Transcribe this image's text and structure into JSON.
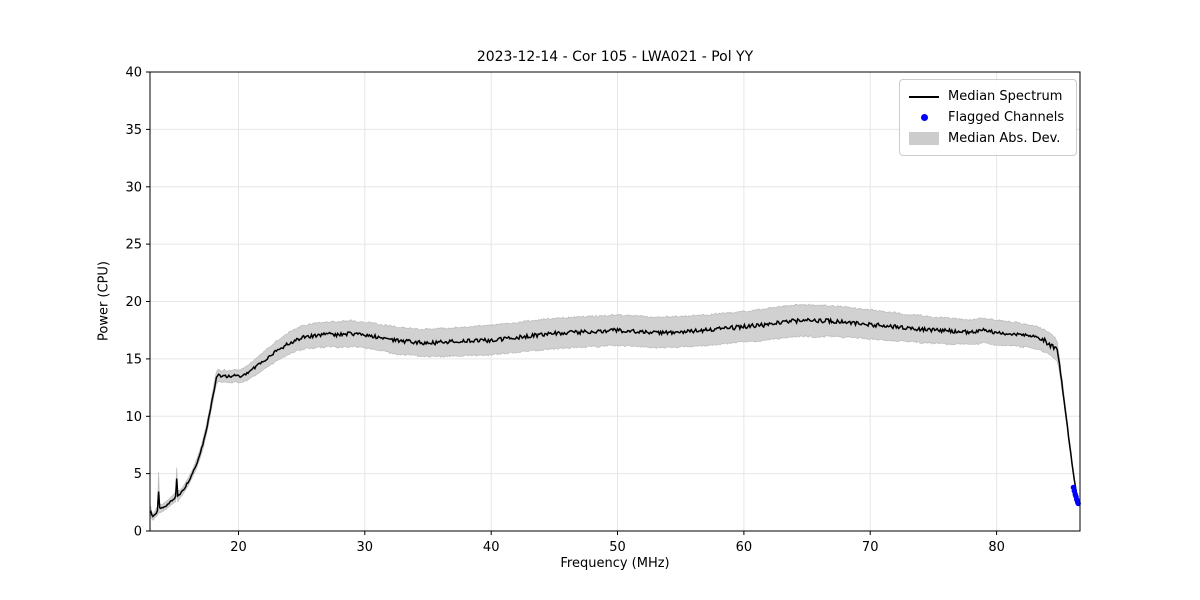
{
  "chart_data": {
    "type": "line",
    "title": "2023-12-14 - Cor 105 - LWA021 - Pol YY",
    "xlabel": "Frequency (MHz)",
    "ylabel": "Power (CPU)",
    "xlim": [
      13.0,
      86.6
    ],
    "ylim": [
      0,
      40
    ],
    "xticks": [
      20,
      30,
      40,
      50,
      60,
      70,
      80
    ],
    "yticks": [
      0,
      5,
      10,
      15,
      20,
      25,
      30,
      35,
      40
    ],
    "grid": true,
    "grid_color": "#e6e6e6",
    "legend_position": "upper right",
    "series": [
      {
        "name": "Median Spectrum",
        "type": "line",
        "color": "#000000",
        "points_format": [
          "freq_mhz",
          "power_cpu",
          "median_abs_dev"
        ],
        "points": [
          [
            13.05,
            1.75,
            0.45
          ],
          [
            13.12,
            1.4,
            0.3
          ],
          [
            13.2,
            1.2,
            0.25
          ],
          [
            13.3,
            1.3,
            0.25
          ],
          [
            13.45,
            1.55,
            0.3
          ],
          [
            13.6,
            1.75,
            0.35
          ],
          [
            13.68,
            3.4,
            1.7
          ],
          [
            13.76,
            2.0,
            0.4
          ],
          [
            13.9,
            1.95,
            0.3
          ],
          [
            14.1,
            2.1,
            0.3
          ],
          [
            14.35,
            2.3,
            0.3
          ],
          [
            14.6,
            2.55,
            0.3
          ],
          [
            14.85,
            2.8,
            0.35
          ],
          [
            15.05,
            3.0,
            0.4
          ],
          [
            15.12,
            4.65,
            1.1
          ],
          [
            15.2,
            3.05,
            0.45
          ],
          [
            15.4,
            3.25,
            0.3
          ],
          [
            15.65,
            3.6,
            0.3
          ],
          [
            15.9,
            4.05,
            0.3
          ],
          [
            16.15,
            4.55,
            0.3
          ],
          [
            16.4,
            5.1,
            0.3
          ],
          [
            16.65,
            5.75,
            0.35
          ],
          [
            16.9,
            6.5,
            0.35
          ],
          [
            17.15,
            7.4,
            0.4
          ],
          [
            17.4,
            8.5,
            0.4
          ],
          [
            17.65,
            9.8,
            0.45
          ],
          [
            17.9,
            11.3,
            0.45
          ],
          [
            18.1,
            12.5,
            0.5
          ],
          [
            18.25,
            13.3,
            0.5
          ],
          [
            18.4,
            13.6,
            0.5
          ],
          [
            18.55,
            13.5,
            0.45
          ],
          [
            18.7,
            13.45,
            0.45
          ],
          [
            18.9,
            13.55,
            0.5
          ],
          [
            19.1,
            13.4,
            0.45
          ],
          [
            19.3,
            13.5,
            0.5
          ],
          [
            19.5,
            13.45,
            0.5
          ],
          [
            19.7,
            13.55,
            0.5
          ],
          [
            19.9,
            13.5,
            0.5
          ],
          [
            20.1,
            13.45,
            0.5
          ],
          [
            20.3,
            13.55,
            0.55
          ],
          [
            20.5,
            13.65,
            0.55
          ],
          [
            20.75,
            13.8,
            0.6
          ],
          [
            21.0,
            14.0,
            0.6
          ],
          [
            21.3,
            14.25,
            0.65
          ],
          [
            21.6,
            14.5,
            0.7
          ],
          [
            21.9,
            14.75,
            0.7
          ],
          [
            22.2,
            15.0,
            0.75
          ],
          [
            22.5,
            15.25,
            0.75
          ],
          [
            22.8,
            15.5,
            0.8
          ],
          [
            23.1,
            15.75,
            0.8
          ],
          [
            23.4,
            15.95,
            0.85
          ],
          [
            23.7,
            16.15,
            0.85
          ],
          [
            24.0,
            16.35,
            0.9
          ],
          [
            24.3,
            16.5,
            0.9
          ],
          [
            24.6,
            16.65,
            0.9
          ],
          [
            24.9,
            16.8,
            0.95
          ],
          [
            25.2,
            16.9,
            0.95
          ],
          [
            25.5,
            16.95,
            0.95
          ],
          [
            25.8,
            17.0,
            1.0
          ],
          [
            26.2,
            17.05,
            1.0
          ],
          [
            26.6,
            17.1,
            1.0
          ],
          [
            27.0,
            17.1,
            1.0
          ],
          [
            27.4,
            17.15,
            1.0
          ],
          [
            27.8,
            17.1,
            1.0
          ],
          [
            28.2,
            17.15,
            1.05
          ],
          [
            28.6,
            17.2,
            1.05
          ],
          [
            29.0,
            17.2,
            1.05
          ],
          [
            29.4,
            17.15,
            1.05
          ],
          [
            29.8,
            17.1,
            1.05
          ],
          [
            30.2,
            17.05,
            1.05
          ],
          [
            30.6,
            17.0,
            1.05
          ],
          [
            31.0,
            16.9,
            1.05
          ],
          [
            31.5,
            16.8,
            1.05
          ],
          [
            32.0,
            16.7,
            1.1
          ],
          [
            32.5,
            16.6,
            1.1
          ],
          [
            33.0,
            16.55,
            1.1
          ],
          [
            33.5,
            16.5,
            1.1
          ],
          [
            34.0,
            16.45,
            1.1
          ],
          [
            34.5,
            16.4,
            1.1
          ],
          [
            35.0,
            16.4,
            1.1
          ],
          [
            35.5,
            16.4,
            1.1
          ],
          [
            36.0,
            16.45,
            1.15
          ],
          [
            36.5,
            16.45,
            1.15
          ],
          [
            37.0,
            16.5,
            1.15
          ],
          [
            37.5,
            16.5,
            1.15
          ],
          [
            38.0,
            16.55,
            1.15
          ],
          [
            38.5,
            16.55,
            1.15
          ],
          [
            39.0,
            16.6,
            1.2
          ],
          [
            39.5,
            16.6,
            1.2
          ],
          [
            40.0,
            16.65,
            1.2
          ],
          [
            40.5,
            16.7,
            1.2
          ],
          [
            41.0,
            16.75,
            1.2
          ],
          [
            41.5,
            16.8,
            1.2
          ],
          [
            42.0,
            16.85,
            1.2
          ],
          [
            42.5,
            16.95,
            1.2
          ],
          [
            43.0,
            17.0,
            1.25
          ],
          [
            43.5,
            17.05,
            1.25
          ],
          [
            44.0,
            17.1,
            1.25
          ],
          [
            44.5,
            17.15,
            1.25
          ],
          [
            45.0,
            17.2,
            1.25
          ],
          [
            45.5,
            17.25,
            1.25
          ],
          [
            46.0,
            17.25,
            1.25
          ],
          [
            46.5,
            17.3,
            1.25
          ],
          [
            47.0,
            17.3,
            1.25
          ],
          [
            47.5,
            17.35,
            1.25
          ],
          [
            48.0,
            17.4,
            1.25
          ],
          [
            48.5,
            17.4,
            1.25
          ],
          [
            49.0,
            17.45,
            1.25
          ],
          [
            49.5,
            17.5,
            1.25
          ],
          [
            50.0,
            17.5,
            1.25
          ],
          [
            50.5,
            17.45,
            1.25
          ],
          [
            51.0,
            17.45,
            1.25
          ],
          [
            51.5,
            17.4,
            1.25
          ],
          [
            52.0,
            17.4,
            1.25
          ],
          [
            52.5,
            17.35,
            1.25
          ],
          [
            53.0,
            17.3,
            1.25
          ],
          [
            53.5,
            17.3,
            1.25
          ],
          [
            54.0,
            17.35,
            1.25
          ],
          [
            54.5,
            17.35,
            1.25
          ],
          [
            55.0,
            17.4,
            1.25
          ],
          [
            55.5,
            17.4,
            1.25
          ],
          [
            56.0,
            17.45,
            1.25
          ],
          [
            56.5,
            17.45,
            1.25
          ],
          [
            57.0,
            17.5,
            1.25
          ],
          [
            57.5,
            17.55,
            1.25
          ],
          [
            58.0,
            17.6,
            1.25
          ],
          [
            58.5,
            17.65,
            1.25
          ],
          [
            59.0,
            17.7,
            1.25
          ],
          [
            59.5,
            17.75,
            1.25
          ],
          [
            60.0,
            17.8,
            1.25
          ],
          [
            60.5,
            17.85,
            1.25
          ],
          [
            61.0,
            17.9,
            1.3
          ],
          [
            61.5,
            17.95,
            1.3
          ],
          [
            62.0,
            18.05,
            1.3
          ],
          [
            62.5,
            18.1,
            1.3
          ],
          [
            63.0,
            18.2,
            1.3
          ],
          [
            63.5,
            18.25,
            1.3
          ],
          [
            64.0,
            18.3,
            1.3
          ],
          [
            64.5,
            18.35,
            1.3
          ],
          [
            65.0,
            18.35,
            1.3
          ],
          [
            65.5,
            18.3,
            1.3
          ],
          [
            66.0,
            18.3,
            1.3
          ],
          [
            66.5,
            18.3,
            1.25
          ],
          [
            67.0,
            18.3,
            1.25
          ],
          [
            67.5,
            18.25,
            1.25
          ],
          [
            68.0,
            18.2,
            1.25
          ],
          [
            68.5,
            18.15,
            1.2
          ],
          [
            69.0,
            18.1,
            1.2
          ],
          [
            69.5,
            18.05,
            1.2
          ],
          [
            70.0,
            18.0,
            1.2
          ],
          [
            70.5,
            17.95,
            1.15
          ],
          [
            71.0,
            17.9,
            1.15
          ],
          [
            71.5,
            17.85,
            1.15
          ],
          [
            72.0,
            17.8,
            1.15
          ],
          [
            72.5,
            17.75,
            1.1
          ],
          [
            73.0,
            17.7,
            1.1
          ],
          [
            73.5,
            17.65,
            1.1
          ],
          [
            74.0,
            17.6,
            1.1
          ],
          [
            74.5,
            17.55,
            1.1
          ],
          [
            75.0,
            17.5,
            1.05
          ],
          [
            75.5,
            17.5,
            1.05
          ],
          [
            76.0,
            17.45,
            1.05
          ],
          [
            76.5,
            17.4,
            1.05
          ],
          [
            77.0,
            17.4,
            1.0
          ],
          [
            77.5,
            17.35,
            1.0
          ],
          [
            78.0,
            17.3,
            1.0
          ],
          [
            78.5,
            17.4,
            1.0
          ],
          [
            79.0,
            17.5,
            1.0
          ],
          [
            79.5,
            17.4,
            1.0
          ],
          [
            80.0,
            17.3,
            1.0
          ],
          [
            80.5,
            17.25,
            1.0
          ],
          [
            81.0,
            17.2,
            0.95
          ],
          [
            81.5,
            17.15,
            0.95
          ],
          [
            82.0,
            17.05,
            0.95
          ],
          [
            82.5,
            17.0,
            0.9
          ],
          [
            83.0,
            16.9,
            0.9
          ],
          [
            83.3,
            16.8,
            0.9
          ],
          [
            83.6,
            16.65,
            0.9
          ],
          [
            83.9,
            16.5,
            0.9
          ],
          [
            84.2,
            16.3,
            0.9
          ],
          [
            84.45,
            16.1,
            0.85
          ],
          [
            84.65,
            15.9,
            0.85
          ],
          [
            84.8,
            15.6,
            0.8
          ],
          [
            84.95,
            14.7,
            0.6
          ],
          [
            85.1,
            13.4,
            0.5
          ],
          [
            85.3,
            11.8,
            0.4
          ],
          [
            85.5,
            10.0,
            0.35
          ],
          [
            85.7,
            8.2,
            0.3
          ],
          [
            85.9,
            6.5,
            0.28
          ],
          [
            86.05,
            5.2,
            0.25
          ],
          [
            86.2,
            4.1,
            0.22
          ],
          [
            86.32,
            3.3,
            0.2
          ],
          [
            86.42,
            2.8,
            0.18
          ],
          [
            86.5,
            2.45,
            0.15
          ]
        ]
      },
      {
        "name": "Flagged Channels",
        "type": "scatter",
        "color": "#0000ff",
        "points_format": [
          "freq_mhz",
          "power_cpu"
        ],
        "points": [
          [
            86.08,
            3.8
          ],
          [
            86.15,
            3.5
          ],
          [
            86.22,
            3.2
          ],
          [
            86.28,
            3.0
          ],
          [
            86.34,
            2.75
          ],
          [
            86.4,
            2.55
          ],
          [
            86.46,
            2.4
          ]
        ]
      },
      {
        "name": "Median Abs. Dev.",
        "type": "band",
        "color": "#cccccc",
        "derived_from": "Median Spectrum",
        "note": "band spans power_cpu ± median_abs_dev of series 0"
      }
    ]
  }
}
